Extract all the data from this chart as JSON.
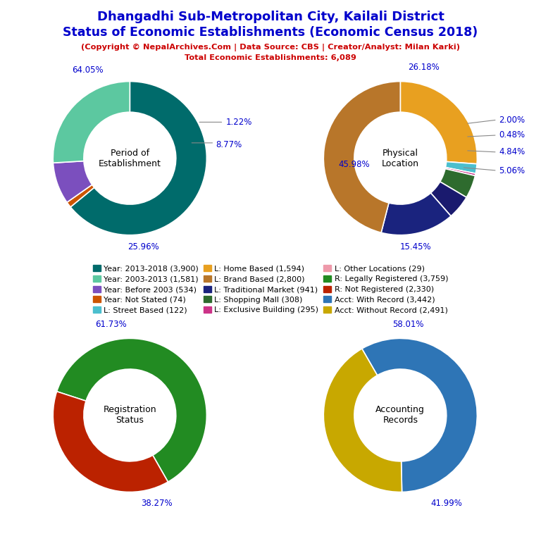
{
  "title_line1": "Dhangadhi Sub-Metropolitan City, Kailali District",
  "title_line2": "Status of Economic Establishments (Economic Census 2018)",
  "subtitle": "(Copyright © NepalArchives.Com | Data Source: CBS | Creator/Analyst: Milan Karki)",
  "subtitle2": "Total Economic Establishments: 6,089",
  "title_color": "#0000CC",
  "subtitle_color": "#CC0000",
  "pie1": {
    "label": "Period of\nEstablishment",
    "values": [
      64.05,
      1.22,
      8.77,
      25.96
    ],
    "colors": [
      "#006B6B",
      "#CC5500",
      "#7B4FBE",
      "#5CC8A0"
    ],
    "pct_labels": [
      "64.05%",
      "1.22%",
      "8.77%",
      "25.96%"
    ],
    "startangle": 90
  },
  "pie2": {
    "label": "Physical\nLocation",
    "values": [
      26.18,
      2.0,
      0.48,
      4.84,
      5.06,
      15.45,
      45.98
    ],
    "colors": [
      "#E8A020",
      "#56B4D3",
      "#CC4488",
      "#006400",
      "#1A237E",
      "#1A237E",
      "#CC7722"
    ],
    "pct_labels": [
      "26.18%",
      "2.00%",
      "0.48%",
      "4.84%",
      "5.06%",
      "15.45%",
      "45.98%"
    ],
    "startangle": 90
  },
  "pie3": {
    "label": "Registration\nStatus",
    "values": [
      61.73,
      38.27
    ],
    "colors": [
      "#228B22",
      "#BB2200"
    ],
    "pct_labels": [
      "61.73%",
      "38.27%"
    ],
    "startangle": 162
  },
  "pie4": {
    "label": "Accounting\nRecords",
    "values": [
      58.01,
      41.99
    ],
    "colors": [
      "#2E75B6",
      "#C8A800"
    ],
    "pct_labels": [
      "58.01%",
      "41.99%"
    ],
    "startangle": 120
  },
  "legend_items": [
    {
      "label": "Year: 2013-2018 (3,900)",
      "color": "#006B6B"
    },
    {
      "label": "Year: 2003-2013 (1,581)",
      "color": "#5CC8A0"
    },
    {
      "label": "Year: Before 2003 (534)",
      "color": "#7B4FBE"
    },
    {
      "label": "Year: Not Stated (74)",
      "color": "#CC5500"
    },
    {
      "label": "L: Street Based (122)",
      "color": "#56B4D3"
    },
    {
      "label": "L: Home Based (1,594)",
      "color": "#E8A020"
    },
    {
      "label": "L: Brand Based (2,800)",
      "color": "#CC7722"
    },
    {
      "label": "L: Traditional Market (941)",
      "color": "#1A237E"
    },
    {
      "label": "L: Shopping Mall (308)",
      "color": "#006400"
    },
    {
      "label": "L: Exclusive Building (295)",
      "color": "#CC3388"
    },
    {
      "label": "L: Other Locations (29)",
      "color": "#CC99AA"
    },
    {
      "label": "R: Legally Registered (3,759)",
      "color": "#228B22"
    },
    {
      "label": "R: Not Registered (2,330)",
      "color": "#BB2200"
    },
    {
      "label": "Acct: With Record (3,442)",
      "color": "#2E75B6"
    },
    {
      "label": "Acct: Without Record (2,491)",
      "color": "#C8A800"
    }
  ]
}
